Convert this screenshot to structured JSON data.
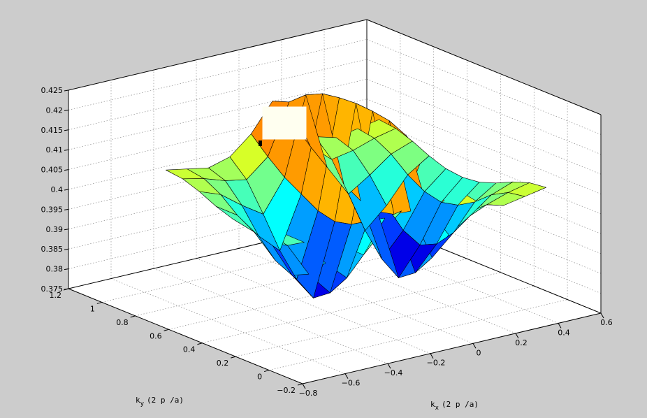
{
  "chart_data": {
    "type": "surface",
    "colormap": "jet",
    "background_color": "#cccccc",
    "plot_box_color": "#ffffff",
    "grid": true,
    "xlabel": "k",
    "xlabel_subscript": "x",
    "xlabel_unit": "(2 p /a)",
    "ylabel": "k",
    "ylabel_subscript": "y",
    "ylabel_unit": "(2 p /a)",
    "xlim": [
      -0.8,
      0.6
    ],
    "ylim": [
      -0.2,
      1.2
    ],
    "zlim": [
      0.375,
      0.425
    ],
    "x_ticks": [
      "-0.8",
      "-0.6",
      "-0.4",
      "-0.2",
      "0",
      "0.2",
      "0.4",
      "0.6"
    ],
    "y_ticks": [
      "-0.2",
      "0",
      "0.2",
      "0.4",
      "0.6",
      "0.8",
      "1",
      "1.2"
    ],
    "z_ticks": [
      "0.375",
      "0.38",
      "0.385",
      "0.39",
      "0.395",
      "0.4",
      "0.405",
      "0.41",
      "0.415",
      "0.42",
      "0.425"
    ],
    "surface_x_range": [
      -0.5,
      0.5
    ],
    "surface_y_range": [
      0,
      1
    ],
    "z_values_estimated": {
      "x": [
        -0.5,
        -0.4,
        -0.3,
        -0.2,
        -0.1,
        0.0,
        0.1,
        0.2,
        0.3,
        0.4,
        0.5
      ],
      "y": [
        0,
        0.1,
        0.2,
        0.3,
        0.4,
        0.5,
        0.6,
        0.7,
        0.8,
        0.9,
        1.0
      ],
      "z": [
        [
          0.4045,
          0.4035,
          0.4025,
          0.404,
          0.4085,
          0.4155,
          0.4085,
          0.404,
          0.4025,
          0.4035,
          0.4045
        ],
        [
          0.404,
          0.4028,
          0.401,
          0.4,
          0.4045,
          0.417,
          0.4045,
          0.4,
          0.401,
          0.4028,
          0.404
        ],
        [
          0.4025,
          0.4005,
          0.3965,
          0.393,
          0.401,
          0.4205,
          0.401,
          0.393,
          0.3965,
          0.4005,
          0.4025
        ],
        [
          0.4005,
          0.397,
          0.3905,
          0.3855,
          0.3985,
          0.4225,
          0.3985,
          0.3855,
          0.3905,
          0.397,
          0.4005
        ],
        [
          0.399,
          0.3945,
          0.386,
          0.38,
          0.396,
          0.4232,
          0.396,
          0.38,
          0.386,
          0.3945,
          0.399
        ],
        [
          0.3985,
          0.3935,
          0.384,
          0.377,
          0.395,
          0.4235,
          0.395,
          0.377,
          0.384,
          0.3935,
          0.3985
        ],
        [
          0.399,
          0.3945,
          0.386,
          0.38,
          0.396,
          0.4232,
          0.396,
          0.38,
          0.386,
          0.3945,
          0.399
        ],
        [
          0.4005,
          0.397,
          0.3905,
          0.3855,
          0.3985,
          0.4225,
          0.3985,
          0.3855,
          0.3905,
          0.397,
          0.4005
        ],
        [
          0.4025,
          0.4005,
          0.3965,
          0.393,
          0.401,
          0.4205,
          0.401,
          0.393,
          0.3965,
          0.4005,
          0.4025
        ],
        [
          0.404,
          0.4028,
          0.401,
          0.4,
          0.4045,
          0.417,
          0.4045,
          0.4,
          0.401,
          0.4028,
          0.404
        ],
        [
          0.4045,
          0.4035,
          0.4025,
          0.404,
          0.4085,
          0.4155,
          0.4085,
          0.404,
          0.4025,
          0.4035,
          0.4045
        ]
      ]
    }
  }
}
